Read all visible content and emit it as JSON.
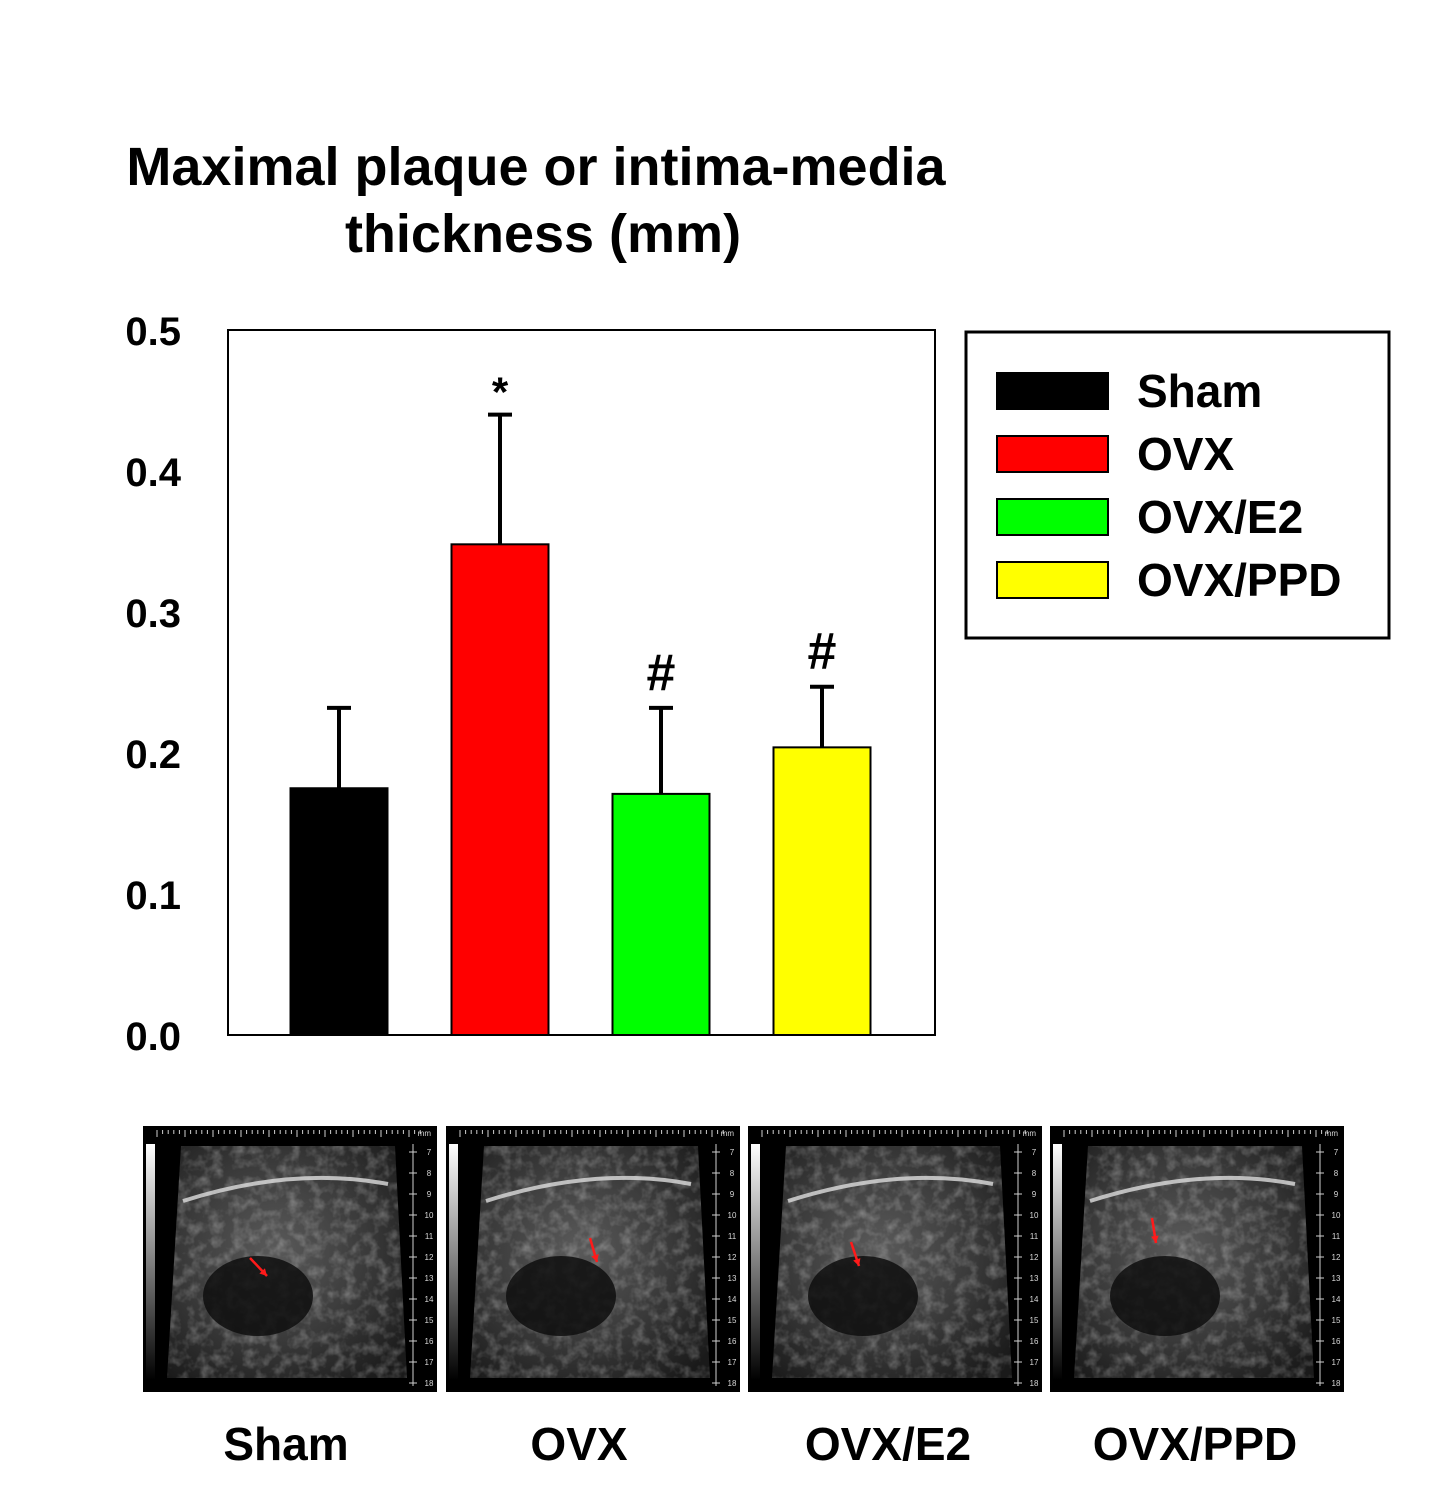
{
  "chart_data": {
    "type": "bar",
    "title_lines": [
      "Maximal plaque or intima-media",
      "thickness (mm)"
    ],
    "categories": [
      "Sham",
      "OVX",
      "OVX/E2",
      "OVX/PPD"
    ],
    "values": [
      0.175,
      0.348,
      0.171,
      0.204
    ],
    "errors": [
      0.057,
      0.092,
      0.061,
      0.043
    ],
    "colors": [
      "#000000",
      "#ff0000",
      "#00ff00",
      "#ffff00"
    ],
    "annotations": [
      "",
      "*",
      "#",
      "#"
    ],
    "ylim": [
      0,
      0.5
    ],
    "yticks": [
      "0.0",
      "0.1",
      "0.2",
      "0.3",
      "0.4",
      "0.5"
    ],
    "xlabel": "",
    "ylabel": "",
    "legend_position": "right",
    "legend": [
      "Sham",
      "OVX",
      "OVX/E2",
      "OVX/PPD"
    ]
  },
  "ultrasound_panels": {
    "labels": [
      "Sham",
      "OVX",
      "OVX/E2",
      "OVX/PPD"
    ],
    "scale_unit": "mm",
    "depth_marks": [
      "7",
      "8",
      "9",
      "10",
      "11",
      "12",
      "13",
      "14",
      "15",
      "16",
      "17",
      "18"
    ]
  }
}
